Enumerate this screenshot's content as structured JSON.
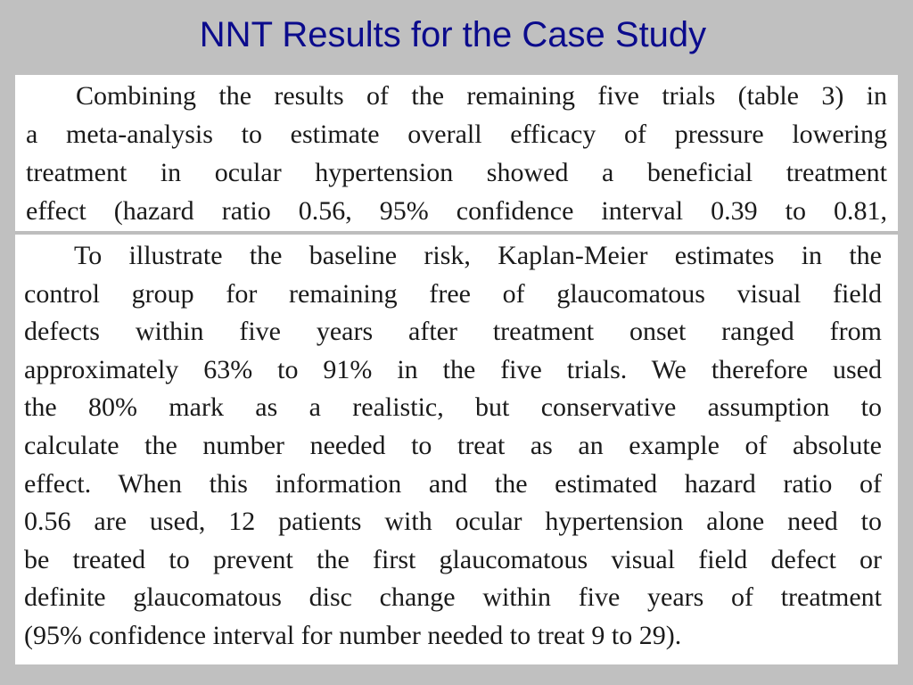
{
  "slide": {
    "title": "NNT Results for the Case Study"
  },
  "excerpt_1": {
    "lines": [
      "Combining the results of the remaining five trials (table 3) in",
      "a meta-analysis to estimate overall efficacy of pressure lowering",
      "treatment in ocular hypertension showed a beneficial treatment",
      "effect (hazard ratio 0.56, 95% confidence interval 0.39 to 0.81,"
    ]
  },
  "excerpt_2": {
    "lines": [
      "To illustrate the baseline risk, Kaplan-Meier estimates in the",
      "control group for remaining free of glaucomatous visual field",
      "defects within five years after treatment onset ranged from",
      "approximately 63% to 91% in the five trials. We therefore used",
      "the 80% mark as a realistic, but conservative assumption to",
      "calculate the number needed to treat as an example of absolute",
      "effect. When this information and the estimated hazard ratio of",
      "0.56 are used, 12 patients with ocular hypertension alone need to",
      "be treated to prevent the first glaucomatous visual field defect or",
      "definite glaucomatous disc change within five years of treatment",
      "(95% confidence interval for number needed to treat 9 to 29)."
    ]
  }
}
